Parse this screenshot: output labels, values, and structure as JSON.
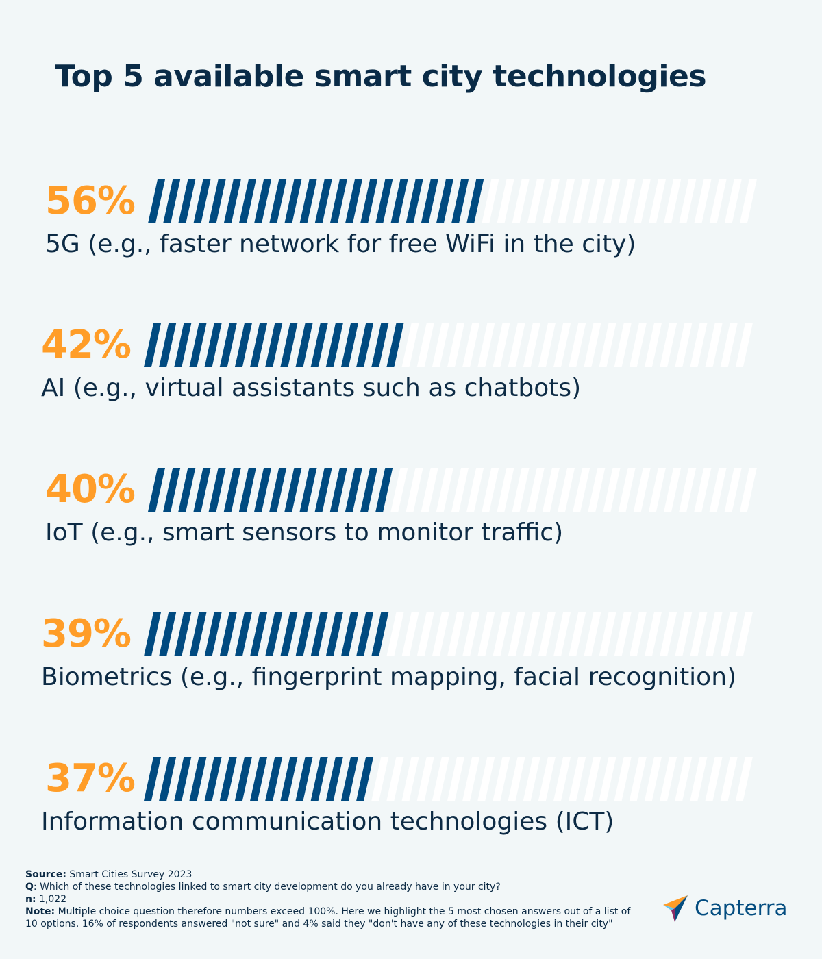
{
  "title": "Top 5 available smart city technologies",
  "chart_data": {
    "type": "bar",
    "orientation": "horizontal",
    "categories": [
      "5G (e.g., faster network for free WiFi in the city)",
      "AI (e.g., virtual assistants such as chatbots)",
      "IoT (e.g., smart sensors to monitor traffic)",
      "Biometrics (e.g., fingerprint mapping, facial recognition)",
      "Information communication technologies (ICT)"
    ],
    "values": [
      56,
      42,
      40,
      39,
      37
    ],
    "value_labels": [
      "56%",
      "42%",
      "40%",
      "39%",
      "37%"
    ],
    "xlim": [
      0,
      100
    ],
    "grid": false,
    "legend": "none",
    "colors": {
      "fill": "#004a80",
      "empty": "#ffffff",
      "value": "#ff9d28"
    }
  },
  "footer": {
    "source_label": "Source:",
    "source_text": " Smart Cities Survey 2023",
    "q_label": "Q",
    "q_text": ": Which of these technologies linked to smart city development do you already have in your city?",
    "n_label": "n:",
    "n_text": " 1,022",
    "note_label": "Note:",
    "note_text": " Multiple choice question therefore numbers exceed 100%. Here we highlight the 5 most chosen answers out of a list of 10 options. 16% of respondents answered \"not sure\" and 4% said they \"don't have any of these technologies in their city\""
  },
  "logo": {
    "text": "Capterra",
    "icon": "capterra-arrow-icon"
  }
}
